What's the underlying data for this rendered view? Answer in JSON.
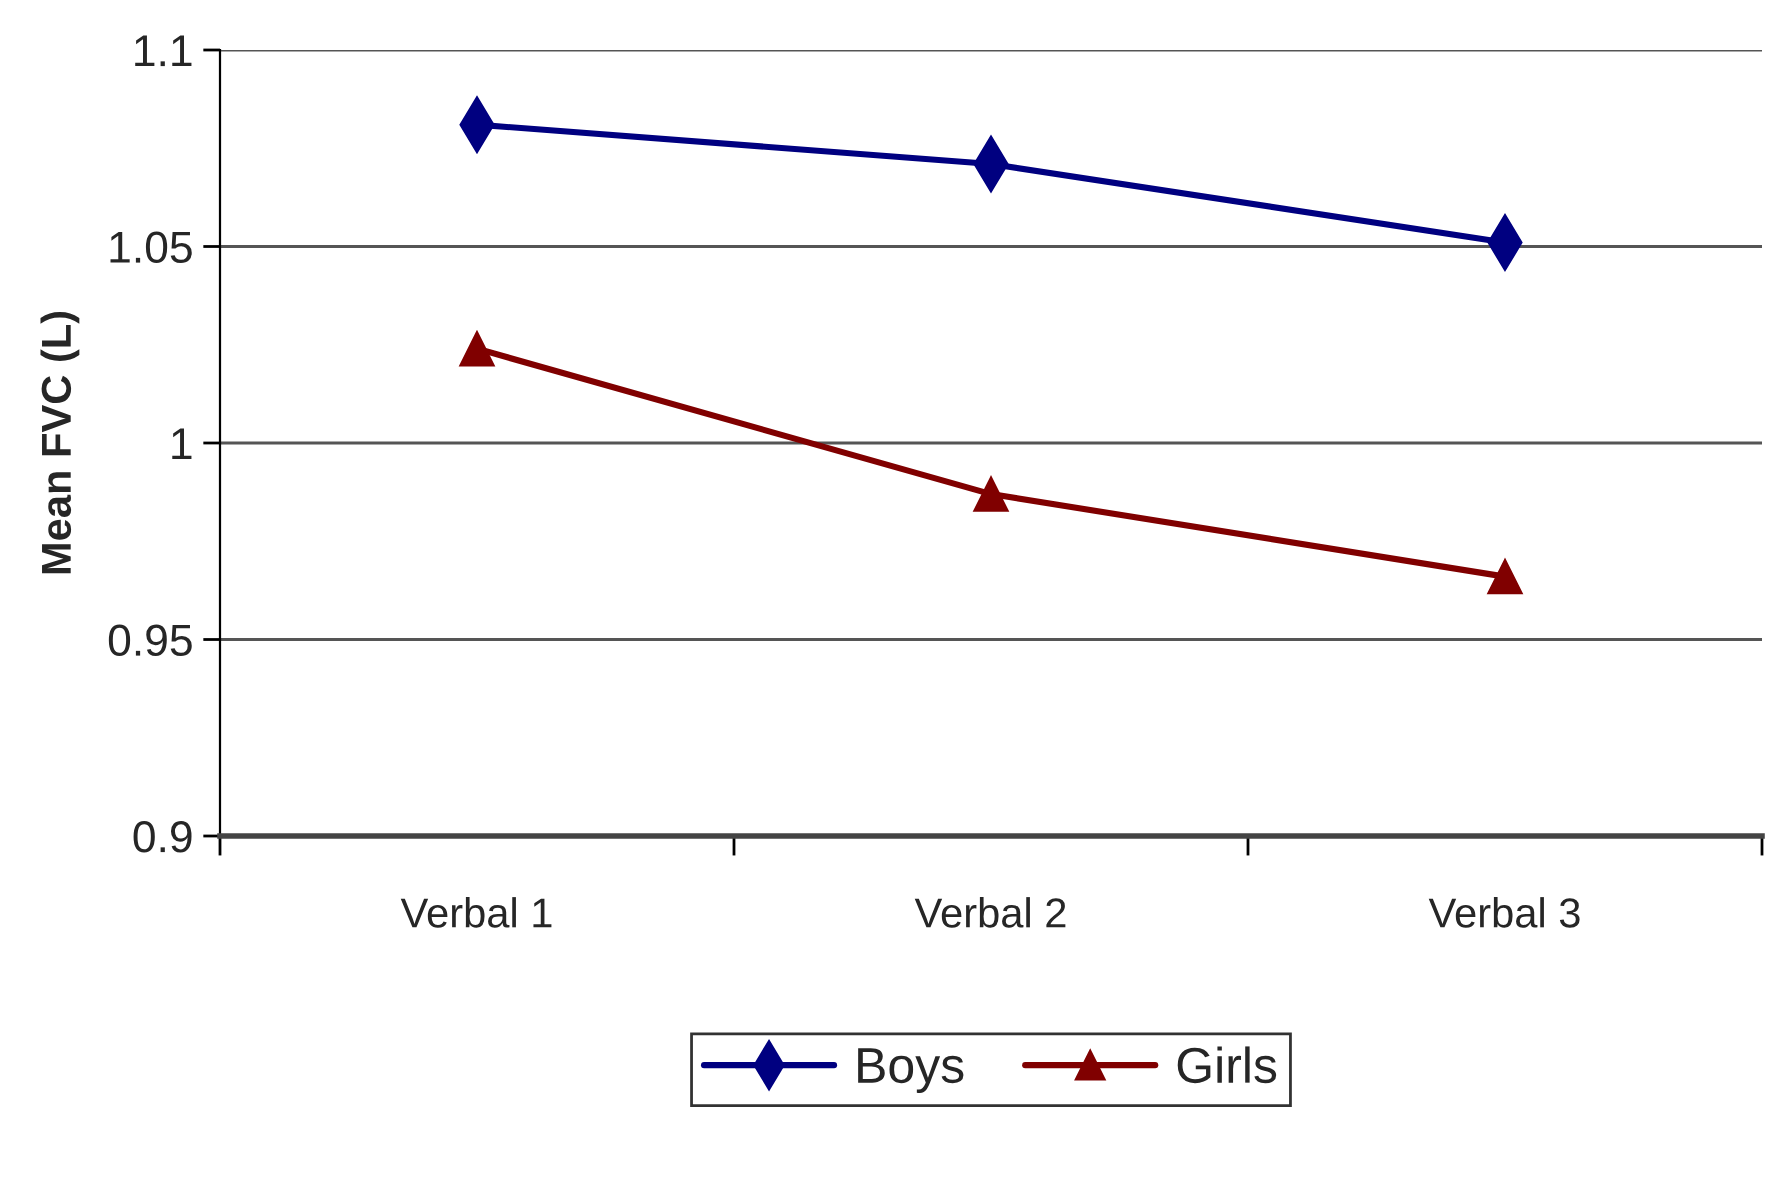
{
  "chart_data": {
    "type": "line",
    "categories": [
      "Verbal 1",
      "Verbal 2",
      "Verbal 3"
    ],
    "series": [
      {
        "name": "Boys",
        "color": "#000080",
        "marker": "diamond",
        "values": [
          1.081,
          1.071,
          1.051
        ]
      },
      {
        "name": "Girls",
        "color": "#800000",
        "marker": "triangle",
        "values": [
          1.024,
          0.987,
          0.966
        ]
      }
    ],
    "ylabel": "Mean FVC (L)",
    "ylim": [
      0.9,
      1.1
    ],
    "yticks": [
      0.9,
      0.95,
      1,
      1.05,
      1.1
    ],
    "grid": "y",
    "legend": "bottom",
    "line_style": "solid"
  }
}
